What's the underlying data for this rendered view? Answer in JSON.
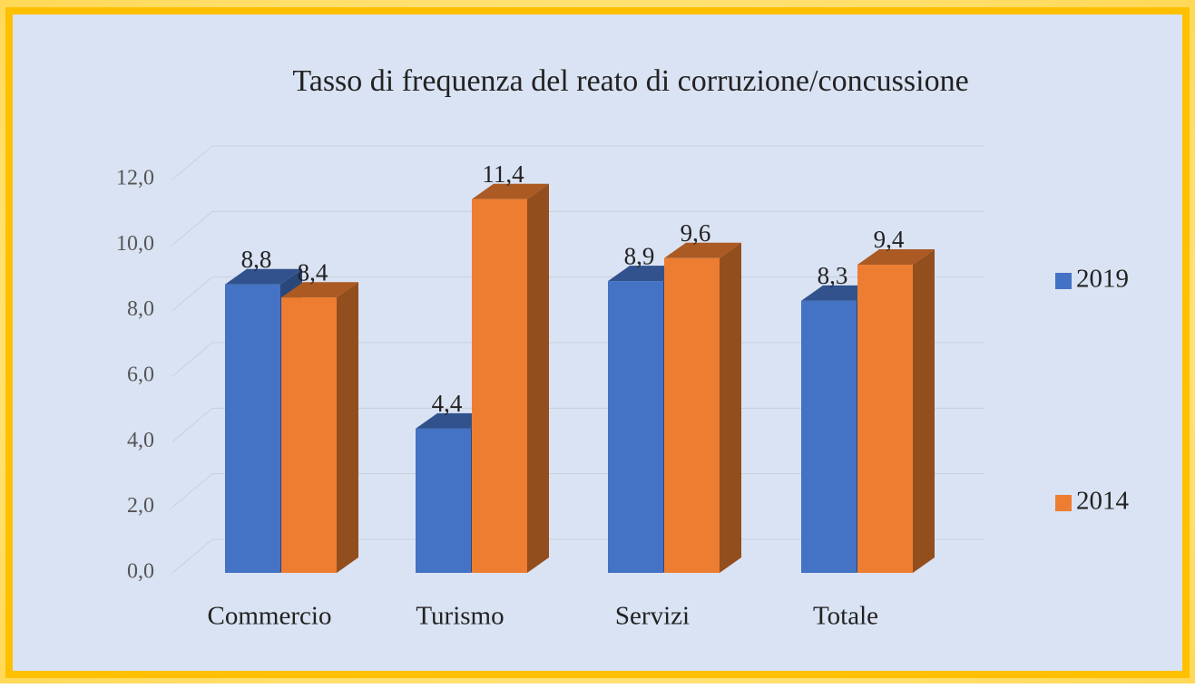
{
  "chart_data": {
    "type": "bar3d",
    "title": "Tasso di frequenza del reato di corruzione/concussione",
    "categories": [
      "Commercio",
      "Turismo",
      "Servizi",
      "Totale"
    ],
    "series": [
      {
        "name": "2019",
        "color": "#4472c4",
        "values": [
          8.8,
          4.4,
          8.9,
          8.3
        ],
        "value_labels": [
          "8,8",
          "4,4",
          "8,9",
          "8,3"
        ]
      },
      {
        "name": "2014",
        "color": "#ed7d31",
        "values": [
          8.4,
          11.4,
          9.6,
          9.4
        ],
        "value_labels": [
          "8,4",
          "11,4",
          "9,6",
          "9,4"
        ]
      }
    ],
    "ylim": [
      0,
      12
    ],
    "yticks": [
      {
        "value": 0,
        "label": "0,0"
      },
      {
        "value": 2,
        "label": "2,0"
      },
      {
        "value": 4,
        "label": "4,0"
      },
      {
        "value": 6,
        "label": "6,0"
      },
      {
        "value": 8,
        "label": "8,0"
      },
      {
        "value": 10,
        "label": "10,0"
      },
      {
        "value": 12,
        "label": "12,0"
      }
    ],
    "grid": true,
    "legend": "right"
  }
}
